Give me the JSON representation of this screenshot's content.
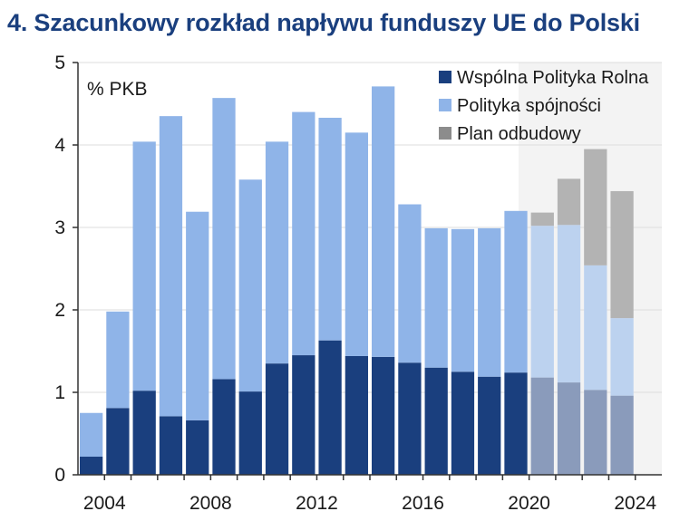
{
  "chart_data": {
    "type": "bar",
    "stacked": true,
    "title": "4. Szacunkowy rozkład napływu funduszy UE do Polski",
    "unit_label": "% PKB",
    "x": [
      2003,
      2004,
      2005,
      2006,
      2007,
      2008,
      2009,
      2010,
      2011,
      2012,
      2013,
      2014,
      2015,
      2016,
      2017,
      2018,
      2019,
      2020,
      2021,
      2022,
      2023,
      2024
    ],
    "x_tick_labels": [
      "2004",
      "2008",
      "2012",
      "2016",
      "2020",
      "2024"
    ],
    "ylim": [
      0,
      5
    ],
    "y_tick_labels": [
      "0",
      "1",
      "2",
      "3",
      "4",
      "5"
    ],
    "grid": true,
    "legend_position": "top-right",
    "forecast_from": 2020,
    "series": [
      {
        "name": "Wspólna Polityka Rolna",
        "color": "#1a3f7e",
        "forecast_color": "#8a9bbb",
        "values": [
          0.22,
          0.81,
          1.02,
          0.71,
          0.66,
          1.16,
          1.01,
          1.35,
          1.45,
          1.63,
          1.44,
          1.43,
          1.36,
          1.3,
          1.25,
          1.19,
          1.24,
          1.18,
          1.12,
          1.03,
          0.96,
          null
        ]
      },
      {
        "name": "Polityka spójności",
        "color": "#8fb4e8",
        "forecast_color": "#bcd2ef",
        "values": [
          0.53,
          1.17,
          3.02,
          3.64,
          2.53,
          3.41,
          2.57,
          2.69,
          2.95,
          2.7,
          2.71,
          3.28,
          1.92,
          1.69,
          1.73,
          1.8,
          1.96,
          1.84,
          1.91,
          1.51,
          0.94,
          null
        ]
      },
      {
        "name": "Plan odbudowy",
        "color": "#8c8c8c",
        "forecast_color": "#b3b3b3",
        "values": [
          0,
          0,
          0,
          0,
          0,
          0,
          0,
          0,
          0,
          0,
          0,
          0,
          0,
          0,
          0,
          0,
          0,
          0.16,
          0.56,
          1.41,
          1.54,
          null
        ]
      }
    ]
  }
}
